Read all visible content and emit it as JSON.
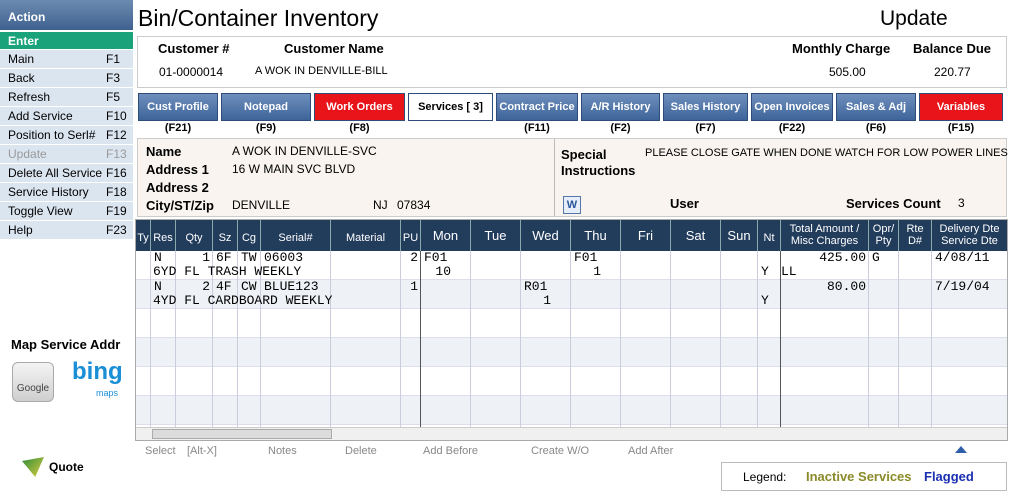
{
  "sidebar": {
    "title": "Action",
    "items": [
      {
        "label": "Enter"
      },
      {
        "label": "Main",
        "key": "F1"
      },
      {
        "label": "Back",
        "key": "F3"
      },
      {
        "label": "Refresh",
        "key": "F5"
      },
      {
        "label": "Add Service",
        "key": "F10"
      },
      {
        "label": "Position to Serl#",
        "key": "F12"
      },
      {
        "label": "Update",
        "key": "F13"
      },
      {
        "label": "Delete All Service",
        "key": "F16"
      },
      {
        "label": "Service History",
        "key": "F18"
      },
      {
        "label": "Toggle View",
        "key": "F19"
      },
      {
        "label": "Help",
        "key": "F23"
      }
    ],
    "map_title": "Map Service Addr",
    "google": "Google",
    "bing": "bing",
    "bing_sub": "maps",
    "quote": "Quote"
  },
  "header": {
    "title": "Bin/Container Inventory",
    "mode": "Update"
  },
  "customer": {
    "labels": [
      "Customer #",
      "Customer Name",
      "Monthly Charge",
      "Balance Due"
    ],
    "values": [
      "01-0000014",
      "A WOK IN DENVILLE-BILL",
      "505.00",
      "220.77"
    ]
  },
  "tabs": [
    {
      "label": "Cust Profile",
      "key": "(F21)"
    },
    {
      "label": "Notepad",
      "key": "(F9)"
    },
    {
      "label": "Work Orders",
      "key": "(F8)"
    },
    {
      "label": "Services [  3]"
    },
    {
      "label": "Contract Price",
      "key": "(F11)"
    },
    {
      "label": "A/R History",
      "key": "(F2)"
    },
    {
      "label": "Sales History",
      "key": "(F7)"
    },
    {
      "label": "Open Invoices",
      "key": "(F22)"
    },
    {
      "label": "Sales & Adj",
      "key": "(F6)"
    },
    {
      "label": "Variables",
      "key": "(F15)"
    }
  ],
  "info": {
    "name_label": "Name",
    "name": "A WOK IN DENVILLE-SVC",
    "addr1_label": "Address 1",
    "addr1": "16 W MAIN SVC BLVD",
    "addr2_label": "Address 2",
    "city_label": "City/ST/Zip",
    "city": "DENVILLE",
    "state": "NJ",
    "zip": "07834",
    "special_label": "Special Instructions",
    "special": "PLEASE CLOSE GATE WHEN DONE WATCH FOR LOW POWER LINES",
    "user_label": "User",
    "count_label": "Services Count",
    "count": 3
  },
  "grid": {
    "columns": [
      {
        "key": "ty",
        "label": "Ty"
      },
      {
        "key": "res",
        "label": "Res"
      },
      {
        "key": "qty",
        "label": "Qty"
      },
      {
        "key": "sz",
        "label": "Sz"
      },
      {
        "key": "cg",
        "label": "Cg"
      },
      {
        "key": "serial",
        "label": "Serial#"
      },
      {
        "key": "material",
        "label": "Material"
      },
      {
        "key": "pu",
        "label": "PU"
      },
      {
        "key": "mon",
        "label": "Mon"
      },
      {
        "key": "tue",
        "label": "Tue"
      },
      {
        "key": "wed",
        "label": "Wed"
      },
      {
        "key": "thu",
        "label": "Thu"
      },
      {
        "key": "fri",
        "label": "Fri"
      },
      {
        "key": "sat",
        "label": "Sat"
      },
      {
        "key": "sun",
        "label": "Sun"
      },
      {
        "key": "nt",
        "label": "Nt"
      },
      {
        "key": "total",
        "label": "Total Amount / Misc Charges"
      },
      {
        "key": "opr",
        "label": "Opr/ Pty"
      },
      {
        "key": "rte",
        "label": "Rte D#"
      },
      {
        "key": "date",
        "label": "Delivery Dte Service Dte"
      }
    ],
    "rows": [
      {
        "line1": {
          "res": "N",
          "qty": 1,
          "sz": "6F",
          "cg": "TW",
          "serial": "06003",
          "pu": 2,
          "mon": "F01",
          "thu": "F01",
          "total": "425.00",
          "opr": "G",
          "date": "4/08/11"
        },
        "line2": {
          "desc": "6YD FL TRASH WEEKLY",
          "mon": 10,
          "thu": 1,
          "nt": "Y",
          "misc": "LL"
        }
      },
      {
        "line1": {
          "res": "N",
          "qty": 2,
          "sz": "4F",
          "cg": "CW",
          "serial": "BLUE123",
          "pu": 1,
          "wed": "R01",
          "total": "80.00",
          "date": "7/19/04"
        },
        "line2": {
          "desc": "4YD FL CARDBOARD WEEKLY",
          "wed": 1,
          "nt": "Y"
        }
      }
    ]
  },
  "toolbar": [
    "Select",
    "[Alt-X]",
    "Notes",
    "Delete",
    "Add Before",
    "Create W/O",
    "Add After"
  ],
  "legend": {
    "label": "Legend:",
    "inactive": "Inactive Services",
    "flagged": "Flagged"
  }
}
